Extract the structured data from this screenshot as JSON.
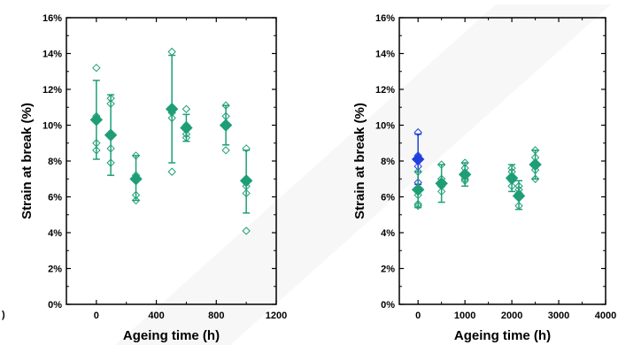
{
  "colors": {
    "green": "#1e9e76",
    "blue": "#1f3fe0",
    "watermark": "#e8e8e8"
  },
  "left_edge_glyph": ")",
  "chart_data": [
    {
      "type": "scatter",
      "title": "",
      "xlabel": "Ageing time (h)",
      "ylabel": "Strain at break (%)",
      "xlim": [
        -200,
        1200
      ],
      "ylim": [
        0,
        16
      ],
      "x_ticks": [
        0,
        400,
        800,
        1200
      ],
      "x_tick_labels": [
        "0",
        "400",
        "800",
        "1200"
      ],
      "y_ticks": [
        0,
        2,
        4,
        6,
        8,
        10,
        12,
        14,
        16
      ],
      "y_tick_labels": [
        "0%",
        "2%",
        "4%",
        "6%",
        "8%",
        "10%",
        "12%",
        "14%",
        "16%"
      ],
      "grid": false,
      "series": [
        {
          "color": "green",
          "points": [
            {
              "x": 0,
              "mean": 10.3,
              "err_low": 8.1,
              "err_high": 12.5,
              "samples": [
                13.2,
                9.0,
                8.6,
                10.5
              ]
            },
            {
              "x": 96,
              "mean": 9.45,
              "err_low": 7.2,
              "err_high": 11.7,
              "samples": [
                11.5,
                11.2,
                8.7,
                7.9
              ]
            },
            {
              "x": 264,
              "mean": 7.0,
              "err_low": 5.8,
              "err_high": 8.3,
              "samples": [
                8.3,
                6.1,
                5.8,
                7.2
              ]
            },
            {
              "x": 504,
              "mean": 10.9,
              "err_low": 7.9,
              "err_high": 13.9,
              "samples": [
                14.1,
                10.7,
                10.4,
                7.4
              ]
            },
            {
              "x": 600,
              "mean": 9.85,
              "err_low": 9.1,
              "err_high": 10.6,
              "samples": [
                10.9,
                9.3,
                9.5,
                10.0
              ]
            },
            {
              "x": 864,
              "mean": 10.0,
              "err_low": 8.9,
              "err_high": 11.1,
              "samples": [
                11.1,
                10.5,
                8.6,
                9.9
              ]
            },
            {
              "x": 1000,
              "mean": 6.9,
              "err_low": 5.1,
              "err_high": 8.6,
              "samples": [
                8.7,
                6.6,
                6.2,
                4.1
              ]
            }
          ]
        }
      ]
    },
    {
      "type": "scatter",
      "title": "",
      "xlabel": "Ageing time (h)",
      "ylabel": "Strain at break (%)",
      "xlim": [
        -400,
        4000
      ],
      "ylim": [
        0,
        16
      ],
      "x_ticks": [
        0,
        1000,
        2000,
        3000,
        4000
      ],
      "x_tick_labels": [
        "0",
        "1000",
        "2000",
        "3000",
        "4000"
      ],
      "y_ticks": [
        0,
        2,
        4,
        6,
        8,
        10,
        12,
        14,
        16
      ],
      "y_tick_labels": [
        "0%",
        "2%",
        "4%",
        "6%",
        "8%",
        "10%",
        "12%",
        "14%",
        "16%"
      ],
      "grid": false,
      "series": [
        {
          "color": "blue",
          "points": [
            {
              "x": 0,
              "mean": 8.1,
              "err_low": 6.7,
              "err_high": 9.5,
              "samples": [
                9.6,
                8.3,
                7.7,
                6.8
              ]
            }
          ]
        },
        {
          "color": "green",
          "points": [
            {
              "x": 0,
              "mean": 6.4,
              "err_low": 5.4,
              "err_high": 7.4,
              "samples": [
                7.4,
                6.1,
                5.6,
                5.5
              ]
            },
            {
              "x": 500,
              "mean": 6.75,
              "err_low": 5.7,
              "err_high": 7.8,
              "samples": [
                7.8,
                6.6,
                6.3,
                7.0
              ]
            },
            {
              "x": 1000,
              "mean": 7.25,
              "err_low": 6.6,
              "err_high": 7.9,
              "samples": [
                7.9,
                7.0,
                6.9,
                7.6
              ]
            },
            {
              "x": 2000,
              "mean": 7.05,
              "err_low": 6.3,
              "err_high": 7.8,
              "samples": [
                7.6,
                6.6,
                6.9,
                7.4
              ]
            },
            {
              "x": 2150,
              "mean": 6.05,
              "err_low": 5.3,
              "err_high": 6.9,
              "samples": [
                6.6,
                6.4,
                5.5,
                6.2
              ]
            },
            {
              "x": 2500,
              "mean": 7.8,
              "err_low": 7.0,
              "err_high": 8.6,
              "samples": [
                8.6,
                8.2,
                7.0,
                7.5
              ]
            }
          ]
        }
      ]
    }
  ]
}
